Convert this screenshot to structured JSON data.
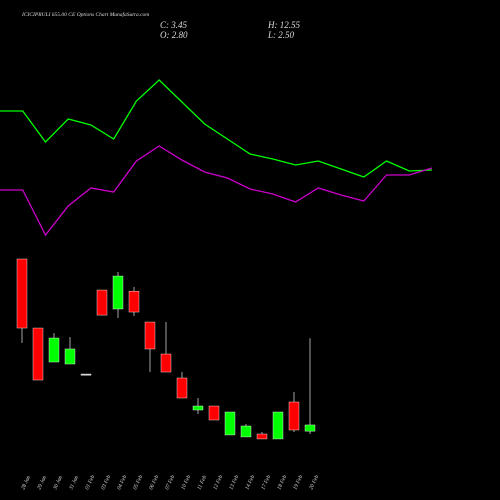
{
  "header": {
    "title": "ICICIPRULI 655.00 CE Options Chart MunafaSutra.com",
    "close": "C: 3.45",
    "high": "H: 12.55",
    "open": "O: 2.80",
    "low": "L: 2.50"
  },
  "chart_data": [
    {
      "type": "line",
      "ylim": [
        0,
        250
      ],
      "series": [
        {
          "name": "Upper",
          "color": "#00ff00",
          "values": [
            139,
            139,
            108,
            131,
            125,
            111,
            149,
            170,
            148,
            126,
            111,
            96,
            91,
            85,
            89,
            81,
            73,
            89,
            79,
            80
          ]
        },
        {
          "name": "Lower",
          "color": "#cc00cc",
          "values": [
            60,
            60,
            15,
            44,
            62,
            58,
            89,
            104,
            90,
            78,
            72,
            61,
            56,
            48,
            62,
            55,
            49,
            75,
            75,
            82
          ]
        }
      ]
    },
    {
      "type": "candlestick",
      "categories": [
        "28 Jan",
        "29 Jan",
        "30 Jan",
        "31 Jan",
        "01 Feb",
        "03 Feb",
        "04 Feb",
        "05 Feb",
        "06 Feb",
        "07 Feb",
        "10 Feb",
        "11 Feb",
        "12 Feb",
        "13 Feb",
        "14 Feb",
        "17 Feb",
        "18 Feb",
        "19 Feb",
        "20 Feb"
      ],
      "open": [
        20.88,
        13.63,
        10.06,
        9.85,
        8.8,
        17.62,
        15.63,
        17.5,
        14.26,
        10.9,
        8.38,
        5.02,
        5.44,
        2.4,
        2.19,
        2.5,
        1.98,
        5.86,
        2.8
      ],
      "high": [
        20.88,
        13.63,
        13.1,
        12.69,
        8.8,
        17.62,
        19.51,
        17.94,
        14.26,
        14.26,
        9.01,
        6.28,
        5.44,
        4.81,
        3.55,
        2.71,
        4.81,
        6.91,
        12.55
      ],
      "low": [
        12.06,
        8.17,
        10.06,
        9.85,
        8.8,
        14.99,
        14.68,
        14.89,
        9.01,
        9.01,
        6.28,
        4.6,
        3.97,
        2.4,
        2.19,
        1.98,
        1.98,
        2.71,
        2.5
      ],
      "close": [
        13.63,
        8.17,
        12.58,
        11.43,
        8.8,
        14.99,
        19.09,
        15.31,
        11.43,
        9.01,
        6.28,
        5.44,
        3.97,
        4.81,
        3.34,
        1.98,
        4.81,
        2.92,
        3.45
      ],
      "up_color": "#00ff00",
      "down_color": "#ff0000",
      "ylim": [
        1.87,
        21.3
      ]
    }
  ]
}
